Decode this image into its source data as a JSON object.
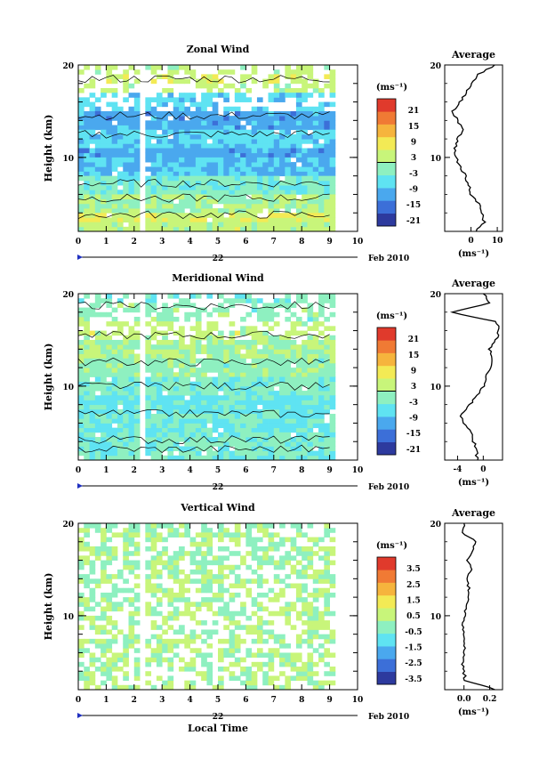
{
  "figure": {
    "xlabel": "Local Time",
    "date_label": "Feb 2010",
    "day_label": "22"
  },
  "colorscale": [
    "#2d3a9e",
    "#3c6fd8",
    "#4aa8ee",
    "#5fe3f2",
    "#8ef0c0",
    "#c8f57a",
    "#f3ea55",
    "#f6b43d",
    "#f07a34",
    "#e03a2c"
  ],
  "chart_data": [
    {
      "type": "heatmap",
      "title": "Zonal Wind",
      "ylabel": "Height (km)",
      "xlim": [
        0,
        10
      ],
      "ylim": [
        2,
        20
      ],
      "x_ticks": [
        "0",
        "1",
        "2",
        "3",
        "4",
        "5",
        "6",
        "7",
        "8",
        "9",
        "10"
      ],
      "y_ticks": [
        "20",
        "10"
      ],
      "colorbar": {
        "unit": "(ms⁻¹)",
        "ticks": [
          "21",
          "15",
          "9",
          "3",
          "-3",
          "-9",
          "-15",
          "-21"
        ],
        "range": [
          -24,
          24
        ],
        "zero_line": 0
      },
      "layers": [
        {
          "y0": 19,
          "y1": 20,
          "v": 2,
          "sparse": true
        },
        {
          "y0": 18,
          "y1": 19,
          "v": 4,
          "sparse": true
        },
        {
          "y0": 17,
          "y1": 18,
          "v": 2,
          "sparse": true
        },
        {
          "y0": 15,
          "y1": 17,
          "v": -8,
          "sparse": true
        },
        {
          "y0": 13,
          "y1": 15,
          "v": -12
        },
        {
          "y0": 11,
          "y1": 13,
          "v": -8
        },
        {
          "y0": 10,
          "y1": 11,
          "v": -12
        },
        {
          "y0": 8,
          "y1": 10,
          "v": -10
        },
        {
          "y0": 6,
          "y1": 8,
          "v": -4
        },
        {
          "y0": 4,
          "y1": 6,
          "v": 0
        },
        {
          "y0": 3,
          "y1": 4,
          "v": 4
        },
        {
          "y0": 2,
          "y1": 3,
          "v": 2
        }
      ],
      "average": {
        "xlim": [
          -10,
          12
        ],
        "x_ticks": [
          "0",
          "10"
        ],
        "heights": [
          2,
          3,
          4,
          5,
          6,
          7,
          8,
          9,
          10,
          11,
          12,
          13,
          14,
          15,
          16,
          17,
          18,
          19,
          20
        ],
        "values": [
          2,
          5,
          4,
          3,
          0,
          -1,
          -2,
          -4,
          -6,
          -6,
          -5,
          -3,
          -5,
          -7,
          -4,
          -2,
          0,
          3,
          9
        ]
      }
    },
    {
      "type": "heatmap",
      "title": "Meridional Wind",
      "ylabel": "Height (km)",
      "xlim": [
        0,
        10
      ],
      "ylim": [
        2,
        20
      ],
      "x_ticks": [
        "0",
        "1",
        "2",
        "3",
        "4",
        "5",
        "6",
        "7",
        "8",
        "9",
        "10"
      ],
      "y_ticks": [
        "20",
        "10"
      ],
      "colorbar": {
        "unit": "(ms⁻¹)",
        "ticks": [
          "21",
          "15",
          "9",
          "3",
          "-3",
          "-9",
          "-15",
          "-21"
        ],
        "range": [
          -24,
          24
        ],
        "zero_line": 0
      },
      "layers": [
        {
          "y0": 19,
          "y1": 20,
          "v": -4,
          "sparse": true
        },
        {
          "y0": 17,
          "y1": 19,
          "v": -2,
          "sparse": true
        },
        {
          "y0": 15,
          "y1": 17,
          "v": 2,
          "sparse": true
        },
        {
          "y0": 13,
          "y1": 15,
          "v": 0
        },
        {
          "y0": 11,
          "y1": 13,
          "v": -2
        },
        {
          "y0": 9,
          "y1": 11,
          "v": -4
        },
        {
          "y0": 7,
          "y1": 9,
          "v": -6
        },
        {
          "y0": 5,
          "y1": 7,
          "v": -5
        },
        {
          "y0": 2,
          "y1": 5,
          "v": -4
        }
      ],
      "average": {
        "xlim": [
          -6,
          3
        ],
        "x_ticks": [
          "-4",
          "0"
        ],
        "heights": [
          2,
          3,
          4,
          5,
          6,
          7,
          8,
          9,
          10,
          11,
          12,
          13,
          14,
          15,
          16,
          17,
          18,
          19,
          20
        ],
        "values": [
          -1,
          -1,
          -1.5,
          -2,
          -3,
          -3.5,
          -2,
          -1,
          0,
          0.5,
          1,
          1.5,
          1,
          2,
          2.5,
          2,
          -5,
          1,
          0
        ]
      }
    },
    {
      "type": "heatmap",
      "title": "Vertical Wind",
      "ylabel": "Height (km)",
      "xlim": [
        0,
        10
      ],
      "ylim": [
        2,
        20
      ],
      "x_ticks": [
        "0",
        "1",
        "2",
        "3",
        "4",
        "5",
        "6",
        "7",
        "8",
        "9",
        "10"
      ],
      "y_ticks": [
        "20",
        "10"
      ],
      "colorbar": {
        "unit": "(ms⁻¹)",
        "ticks": [
          "3.5",
          "2.5",
          "1.5",
          "0.5",
          "-0.5",
          "-1.5",
          "-2.5",
          "-3.5"
        ],
        "range": [
          -4,
          4
        ]
      },
      "layers": [
        {
          "y0": 19,
          "y1": 20,
          "v": -0.2,
          "sparse": true
        },
        {
          "y0": 16,
          "y1": 19,
          "v": -0.1,
          "sparse": true
        },
        {
          "y0": 2,
          "y1": 16,
          "v": 0.0,
          "sparse": true
        }
      ],
      "average": {
        "xlim": [
          -0.15,
          0.3
        ],
        "x_ticks": [
          "0.0",
          "0.2"
        ],
        "heights": [
          2,
          3,
          4,
          5,
          6,
          7,
          8,
          9,
          10,
          11,
          12,
          13,
          14,
          15,
          16,
          17,
          18,
          19,
          20
        ],
        "values": [
          0.25,
          0.01,
          0.0,
          -0.01,
          0.0,
          0.01,
          0.0,
          -0.01,
          0.0,
          0.02,
          0.03,
          0.04,
          0.02,
          0.05,
          0.03,
          0.06,
          0.1,
          -0.02,
          0.0
        ]
      }
    }
  ]
}
